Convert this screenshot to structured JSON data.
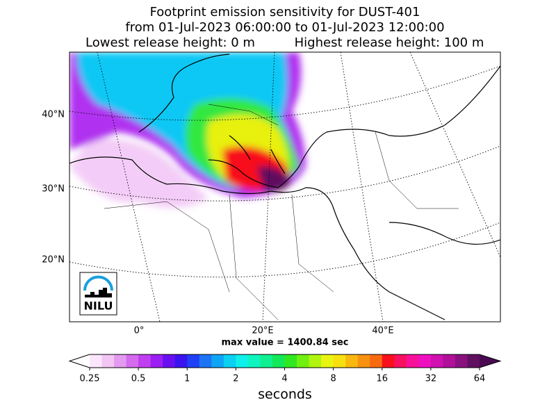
{
  "title_lines": [
    "Footprint emission sensitivity for DUST-401",
    "from 01-Jul-2023 06:00:00 to 01-Jul-2023 12:00:00"
  ],
  "release_heights": [
    "Lowest release height: 0 m",
    "Highest release height: 100 m"
  ],
  "map": {
    "lat_labels": [
      "40°N",
      "30°N",
      "20°N"
    ],
    "lon_labels": [
      "0°",
      "20°E",
      "40°E"
    ],
    "max_value_text": "max value = 1400.84 sec"
  },
  "logo": {
    "text": "NILU"
  },
  "colorbar": {
    "label": "seconds",
    "log": true,
    "lim": [
      0.25,
      64
    ],
    "ticks": [
      0.25,
      0.5,
      1,
      2,
      4,
      8,
      16,
      32,
      64
    ],
    "under_color": "#ffffff",
    "over_color": "#4a0a50",
    "colors": [
      "#fbe6fb",
      "#f2c5f5",
      "#e49af0",
      "#d46aee",
      "#c03ef0",
      "#9b1ef2",
      "#6a10f0",
      "#3a14ee",
      "#2040f5",
      "#1c74f5",
      "#10a4f5",
      "#0cd0f2",
      "#0ff0ea",
      "#0ff5c0",
      "#10f090",
      "#12e858",
      "#30e820",
      "#70f010",
      "#b0f510",
      "#e8f510",
      "#f8e010",
      "#f8b810",
      "#f89010",
      "#f86a10",
      "#f8101c",
      "#f81060",
      "#f8109a",
      "#ee10c0",
      "#d010b0",
      "#b0109a",
      "#8a1080",
      "#601060"
    ]
  }
}
